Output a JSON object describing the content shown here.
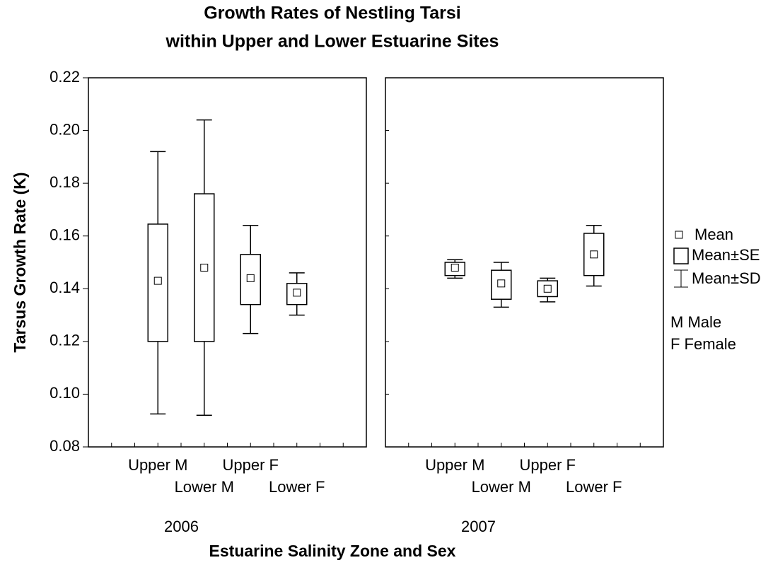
{
  "chart_data": {
    "type": "box",
    "title": [
      "Growth Rates of Nestling Tarsi",
      "within Upper and Lower Estuarine Sites"
    ],
    "ylabel": "Tarsus Growth Rate (K)",
    "xlabel": "Estuarine Salinity Zone and Sex",
    "ylim": [
      0.08,
      0.22
    ],
    "yticks": [
      0.08,
      {
        "value": 0.1,
        "label": "0.10"
      },
      0.12,
      0.14,
      0.16,
      0.18,
      {
        "value": 0.2,
        "label": "0.20"
      },
      0.22
    ],
    "legend": [
      "Mean",
      "Mean±SE",
      "Mean±SD"
    ],
    "notes": [
      "M Male",
      "F Female"
    ],
    "color": "#000000",
    "panels": [
      {
        "label": "2006",
        "categories": [
          "Upper M",
          "Lower M",
          "Upper F",
          "Lower F"
        ],
        "mean": [
          0.143,
          0.148,
          0.144,
          0.1385
        ],
        "se_low": [
          0.12,
          0.12,
          0.134,
          0.134
        ],
        "se_high": [
          0.1645,
          0.176,
          0.153,
          0.142
        ],
        "sd_low": [
          0.0925,
          0.092,
          0.123,
          0.13
        ],
        "sd_high": [
          0.192,
          0.204,
          0.164,
          0.146
        ]
      },
      {
        "label": "2007",
        "categories": [
          "Upper M",
          "Lower M",
          "Upper F",
          "Lower F"
        ],
        "mean": [
          0.148,
          0.142,
          0.14,
          0.153
        ],
        "se_low": [
          0.145,
          0.136,
          0.137,
          0.145
        ],
        "se_high": [
          0.15,
          0.147,
          0.143,
          0.161
        ],
        "sd_low": [
          0.144,
          0.133,
          0.135,
          0.141
        ],
        "sd_high": [
          0.151,
          0.15,
          0.144,
          0.164
        ]
      }
    ]
  }
}
